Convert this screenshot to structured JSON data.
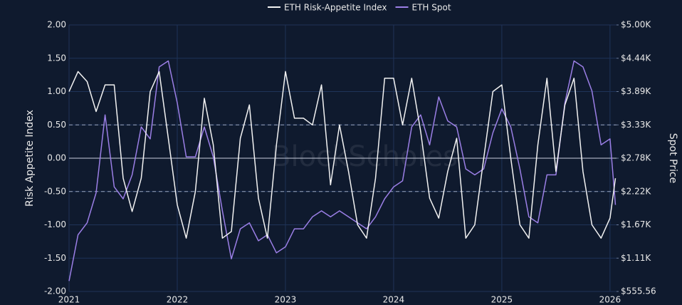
{
  "chart_data": {
    "type": "line",
    "x": [
      2021,
      2021.083,
      2021.167,
      2021.25,
      2021.333,
      2021.417,
      2021.5,
      2021.583,
      2021.667,
      2021.75,
      2021.833,
      2021.917,
      2022,
      2022.083,
      2022.167,
      2022.25,
      2022.333,
      2022.417,
      2022.5,
      2022.583,
      2022.667,
      2022.75,
      2022.833,
      2022.917,
      2023,
      2023.083,
      2023.167,
      2023.25,
      2023.333,
      2023.417,
      2023.5,
      2023.583,
      2023.667,
      2023.75,
      2023.833,
      2023.917,
      2024,
      2024.083,
      2024.167,
      2024.25,
      2024.333,
      2024.417,
      2024.5,
      2024.583,
      2024.667,
      2024.75,
      2024.833,
      2024.917,
      2025,
      2025.083,
      2025.167,
      2025.25,
      2025.333,
      2025.417,
      2025.5,
      2025.583,
      2025.667,
      2025.75,
      2025.833,
      2025.917,
      2026,
      2026.05
    ],
    "series": [
      {
        "name": "ETH Risk-Appetite Index",
        "color": "#f2f2f2",
        "values": [
          1.0,
          1.3,
          1.15,
          0.7,
          1.1,
          1.1,
          -0.3,
          -0.8,
          -0.3,
          1.0,
          1.3,
          0.3,
          -0.7,
          -1.2,
          -0.5,
          0.9,
          0.2,
          -1.2,
          -1.1,
          0.3,
          0.8,
          -0.6,
          -1.2,
          0.2,
          1.3,
          0.6,
          0.6,
          0.5,
          1.1,
          -0.4,
          0.5,
          -0.2,
          -1.0,
          -1.2,
          -0.3,
          1.2,
          1.2,
          0.5,
          1.2,
          0.4,
          -0.6,
          -0.9,
          -0.2,
          0.3,
          -1.2,
          -1.0,
          0.0,
          1.0,
          1.1,
          0.0,
          -1.0,
          -1.2,
          0.2,
          1.2,
          -0.2,
          0.8,
          1.2,
          -0.2,
          -1.0,
          -1.2,
          -0.9,
          -0.3
        ]
      },
      {
        "name": "ETH Spot",
        "color": "#9b7fe6",
        "axis": "y2",
        "values": [
          730,
          1500,
          1700,
          2200,
          3500,
          2300,
          2100,
          2500,
          3300,
          3100,
          4300,
          4400,
          3700,
          2800,
          2800,
          3300,
          2800,
          1900,
          1100,
          1600,
          1700,
          1400,
          1500,
          1200,
          1300,
          1600,
          1600,
          1800,
          1900,
          1800,
          1900,
          1800,
          1700,
          1600,
          1800,
          2100,
          2300,
          2400,
          3300,
          3500,
          3000,
          3800,
          3400,
          3300,
          2600,
          2500,
          2600,
          3200,
          3600,
          3300,
          2600,
          1800,
          1700,
          2500,
          2500,
          3700,
          4400,
          4300,
          3900,
          3000,
          3100,
          2000
        ]
      }
    ],
    "y_label": "Risk Appetite Index",
    "y2_label": "Spot Price",
    "watermark": "BlockScholes",
    "xlim": [
      2021,
      2026.06
    ],
    "xticks": [
      2021,
      2022,
      2023,
      2024,
      2025,
      2026
    ],
    "ylim": [
      -2,
      2
    ],
    "yticks": [
      {
        "value": -2,
        "label": "-2.00"
      },
      {
        "value": -1.5,
        "label": "-1.50"
      },
      {
        "value": -1,
        "label": "-1.00"
      },
      {
        "value": -0.5,
        "label": "-0.50"
      },
      {
        "value": 0,
        "label": "0.00"
      },
      {
        "value": 0.5,
        "label": "0.50"
      },
      {
        "value": 1,
        "label": "1.00"
      },
      {
        "value": 1.5,
        "label": "1.50"
      },
      {
        "value": 2,
        "label": "2.00"
      }
    ],
    "y2lim": [
      555.56,
      5000
    ],
    "y2ticks": [
      {
        "value": 555.56,
        "label": "$555.56"
      },
      {
        "value": 1111.11,
        "label": "$1.11K"
      },
      {
        "value": 1666.67,
        "label": "$1.67K"
      },
      {
        "value": 2222.22,
        "label": "$2.22K"
      },
      {
        "value": 2777.78,
        "label": "$2.78K"
      },
      {
        "value": 3333.33,
        "label": "$3.33K"
      },
      {
        "value": 3888.89,
        "label": "$3.89K"
      },
      {
        "value": 4444.44,
        "label": "$4.44K"
      },
      {
        "value": 5000,
        "label": "$5.00K"
      }
    ],
    "hlines": [
      -0.5,
      0,
      0.5
    ],
    "grid": true,
    "legend": "top"
  }
}
